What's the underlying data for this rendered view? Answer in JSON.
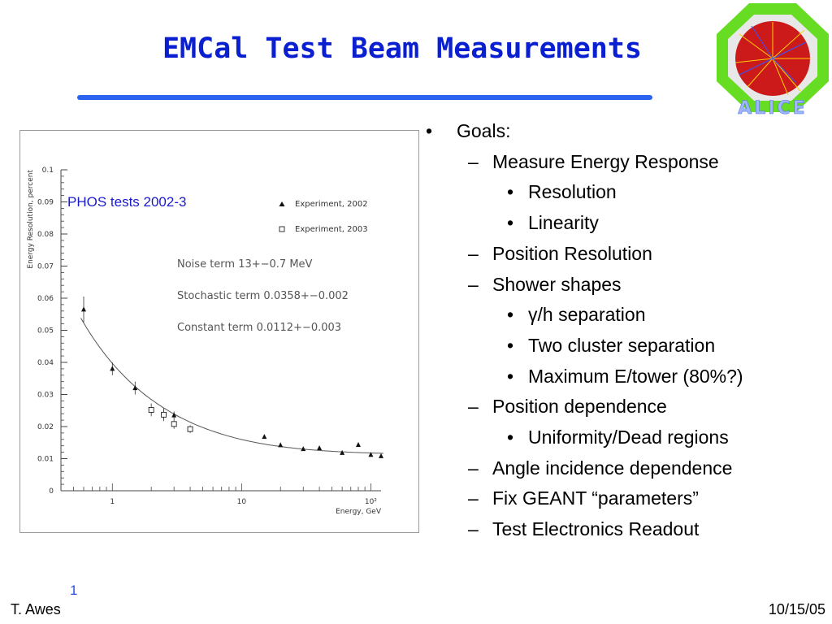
{
  "slide": {
    "title": "EMCal Test Beam Measurements",
    "logo_text": "ALICE",
    "chart_annotation": "PHOS tests 2002-3",
    "footer": {
      "page_number": "1",
      "author": "T. Awes",
      "date": "10/15/05"
    }
  },
  "bullets": [
    {
      "level": 1,
      "marker": "•",
      "text": "Goals:"
    },
    {
      "level": 2,
      "marker": "–",
      "text": "Measure Energy Response"
    },
    {
      "level": 3,
      "marker": "•",
      "text": "Resolution"
    },
    {
      "level": 3,
      "marker": "•",
      "text": "Linearity"
    },
    {
      "level": 2,
      "marker": "–",
      "text": "Position Resolution"
    },
    {
      "level": 2,
      "marker": "–",
      "text": "Shower shapes"
    },
    {
      "level": 3,
      "marker": "•",
      "text": "γ/h separation"
    },
    {
      "level": 3,
      "marker": "•",
      "text": "Two cluster separation"
    },
    {
      "level": 3,
      "marker": "•",
      "text": "Maximum E/tower (80%?)"
    },
    {
      "level": 2,
      "marker": "–",
      "text": "Position dependence"
    },
    {
      "level": 3,
      "marker": "•",
      "text": "Uniformity/Dead regions"
    },
    {
      "level": 2,
      "marker": "–",
      "text": "Angle incidence dependence"
    },
    {
      "level": 2,
      "marker": "–",
      "text": "Fix GEANT “parameters”"
    },
    {
      "level": 2,
      "marker": "–",
      "text": "Test Electronics Readout"
    }
  ],
  "chart_data": {
    "type": "scatter",
    "xlabel": "Energy, GeV",
    "ylabel": "Energy Resolution, percent",
    "xscale": "log",
    "xlim": [
      0.4,
      120
    ],
    "ylim": [
      0,
      0.1
    ],
    "x_tick_labels": [
      "1",
      "10",
      "10²"
    ],
    "y_ticks": [
      "0",
      "0.01",
      "0.02",
      "0.03",
      "0.04",
      "0.05",
      "0.06",
      "0.07",
      "0.08",
      "0.09",
      "0.1"
    ],
    "annotations": [
      "Noise term 13+−0.7 MeV",
      "Stochastic term 0.0358+−0.002",
      "Constant term 0.0112+−0.003"
    ],
    "series": [
      {
        "name": "Experiment, 2002",
        "marker": "filled-triangle",
        "x": [
          0.6,
          1.0,
          1.5,
          2.5,
          3.0,
          15,
          20,
          30,
          40,
          60,
          80,
          100,
          120
        ],
        "y": [
          0.0565,
          0.038,
          0.032,
          0.0238,
          0.0235,
          0.0168,
          0.0142,
          0.013,
          0.0133,
          0.0118,
          0.0143,
          0.0112,
          0.0108
        ],
        "err": [
          0.004,
          0.002,
          0.002,
          0.0015,
          0.0012,
          0.0005,
          0.0005,
          0.0004,
          0.0004,
          0.0004,
          0.0005,
          0.0004,
          0.0004
        ]
      },
      {
        "name": "Experiment, 2003",
        "marker": "open-square",
        "x": [
          2.0,
          2.5,
          3.0,
          4.0
        ],
        "y": [
          0.0252,
          0.0237,
          0.0208,
          0.0192
        ],
        "err": [
          0.002,
          0.002,
          0.0015,
          0.0012
        ]
      }
    ],
    "fit_curve": {
      "stochastic": 0.0358,
      "constant": 0.0112,
      "noise_gev": 0.013
    },
    "legend_position": "top-right",
    "grid": false
  }
}
